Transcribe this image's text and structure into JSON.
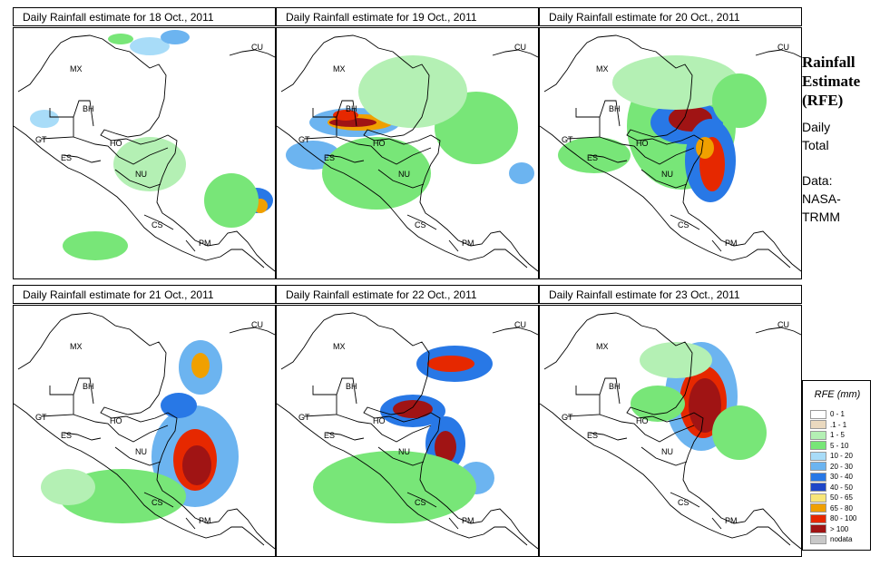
{
  "panels": [
    {
      "title": "Daily Rainfall estimate for  18 Oct., 2011",
      "countries": [
        "MX",
        "BH",
        "GT",
        "HO",
        "ES",
        "NU",
        "CS",
        "PM",
        "CU"
      ],
      "day": 0
    },
    {
      "title": "Daily Rainfall estimate for  19 Oct., 2011",
      "countries": [
        "MX",
        "BH",
        "GT",
        "HO",
        "ES",
        "NU",
        "CS",
        "PM",
        "CU"
      ],
      "day": 1
    },
    {
      "title": "Daily Rainfall estimate for  20 Oct., 2011",
      "countries": [
        "MX",
        "BH",
        "GT",
        "HO",
        "ES",
        "NU",
        "CS",
        "PM",
        "CU"
      ],
      "day": 2
    },
    {
      "title": "Daily Rainfall estimate for  21 Oct., 2011",
      "countries": [
        "MX",
        "BH",
        "GT",
        "HO",
        "ES",
        "NU",
        "CS",
        "PM",
        "CU"
      ],
      "day": 3
    },
    {
      "title": "Daily Rainfall estimate for  22 Oct., 2011",
      "countries": [
        "MX",
        "BH",
        "GT",
        "HO",
        "ES",
        "NU",
        "CS",
        "PM",
        "CU"
      ],
      "day": 4
    },
    {
      "title": "Daily Rainfall estimate for  23 Oct., 2011",
      "countries": [
        "MX",
        "BH",
        "GT",
        "HO",
        "ES",
        "NU",
        "CS",
        "PM",
        "CU"
      ],
      "day": 5
    }
  ],
  "side": {
    "title_line1": "Rainfall",
    "title_line2": "Estimate",
    "title_line3": "(RFE)",
    "period_line1": "Daily",
    "period_line2": "Total",
    "source_line1": "Data:",
    "source_line2": "NASA-",
    "source_line3": "TRMM"
  },
  "legend": {
    "title": "RFE (mm)",
    "classes": [
      {
        "label": "0 - 1",
        "color": "#ffffff"
      },
      {
        "label": ".1 - 1",
        "color": "#ead9bf"
      },
      {
        "label": "1 - 5",
        "color": "#b4f0b4"
      },
      {
        "label": "5 - 10",
        "color": "#78e678"
      },
      {
        "label": "10 - 20",
        "color": "#a8dcf8"
      },
      {
        "label": "20 - 30",
        "color": "#6cb4f0"
      },
      {
        "label": "30 - 40",
        "color": "#2878e6"
      },
      {
        "label": "40 - 50",
        "color": "#1e46c8"
      },
      {
        "label": "50 - 65",
        "color": "#f8e678"
      },
      {
        "label": "65 - 80",
        "color": "#f0a000"
      },
      {
        "label": "80 - 100",
        "color": "#e62800"
      },
      {
        "label": "> 100",
        "color": "#a01414"
      },
      {
        "label": "nodata",
        "color": "#c8c8c8"
      }
    ]
  }
}
